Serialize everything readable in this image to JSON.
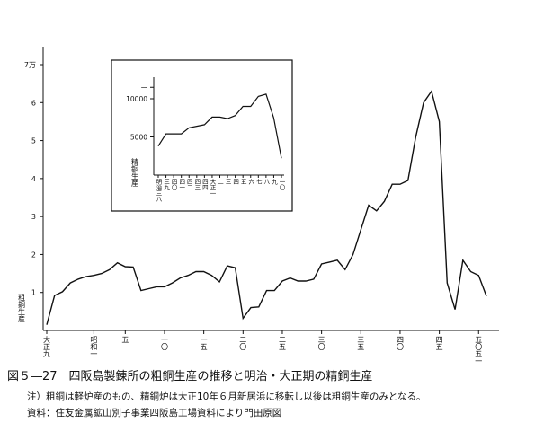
{
  "chart_data": [
    {
      "type": "line",
      "title": "",
      "ylabel": "粗銅生産",
      "xlabel": "",
      "ylim": [
        0,
        7
      ],
      "y_ticks": [
        "1",
        "2",
        "3",
        "4",
        "5",
        "6",
        "7万"
      ],
      "x_tick_labels": [
        "大正九",
        "昭和一",
        "五",
        "一〇",
        "一五",
        "二〇",
        "二五",
        "三〇",
        "三五",
        "四〇",
        "四五",
        "五〇五一"
      ],
      "x": [
        1920,
        1921,
        1922,
        1923,
        1924,
        1925,
        1926,
        1927,
        1928,
        1929,
        1930,
        1931,
        1932,
        1933,
        1934,
        1935,
        1936,
        1937,
        1938,
        1939,
        1940,
        1941,
        1942,
        1943,
        1944,
        1945,
        1946,
        1947,
        1948,
        1949,
        1950,
        1951,
        1952,
        1953,
        1954,
        1955,
        1956,
        1957,
        1958,
        1959,
        1960,
        1961,
        1962,
        1963,
        1964,
        1965,
        1966,
        1967,
        1968,
        1969,
        1970,
        1971,
        1972,
        1973,
        1974,
        1975,
        1976
      ],
      "values": [
        0.15,
        0.92,
        1.02,
        1.25,
        1.35,
        1.42,
        1.45,
        1.5,
        1.6,
        1.78,
        1.68,
        1.67,
        1.05,
        1.1,
        1.15,
        1.15,
        1.25,
        1.38,
        1.45,
        1.55,
        1.55,
        1.45,
        1.28,
        1.7,
        1.65,
        0.32,
        0.6,
        0.62,
        1.05,
        1.05,
        1.3,
        1.38,
        1.3,
        1.3,
        1.35,
        1.75,
        1.8,
        1.85,
        1.6,
        2.0,
        2.65,
        3.3,
        3.15,
        3.4,
        3.85,
        3.85,
        3.95,
        5.1,
        6.0,
        6.3,
        5.5,
        1.25,
        0.55,
        1.85,
        1.55,
        1.45,
        0.9
      ]
    },
    {
      "type": "line",
      "title": "",
      "ylabel": "精銅生産",
      "ylim": [
        0,
        12000
      ],
      "y_ticks": [
        "5000",
        "10000",
        "ー"
      ],
      "x_tick_labels": [
        "明治三八",
        "三九",
        "四〇",
        "四一",
        "四二",
        "四三",
        "四四",
        "大正一",
        "二",
        "三",
        "四",
        "五",
        "六",
        "七",
        "八",
        "九",
        "一〇"
      ],
      "values": [
        3800,
        5400,
        5400,
        5400,
        6200,
        6400,
        6600,
        7600,
        7600,
        7400,
        7800,
        9000,
        9000,
        10300,
        10600,
        7500,
        2200
      ]
    }
  ],
  "caption": "図５―27　四阪島製錬所の粗銅生産の推移と明治・大正期の精銅生産",
  "note1": "注）粗銅は軽炉産のもの、精銅炉は大正10年６月新居浜に移転し以後は粗銅生産のみとなる。",
  "note2": "資料：住友金属鉱山別子事業四阪島工場資料により門田原図"
}
